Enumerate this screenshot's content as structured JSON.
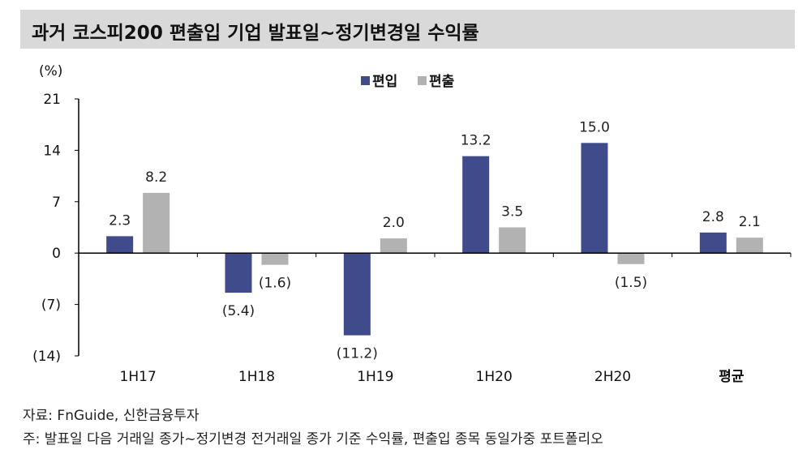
{
  "title": "과거 코스피200 편출입 기업 발표일~정기변경일 수익률",
  "source": "자료: FnGuide, 신한금융투자",
  "note": "주: 발표일 다음 거래일 종가~정기변경 전거래일 종가 기준 수익률, 편출입 종목 동일가중 포트폴리오",
  "chart_data": {
    "type": "bar",
    "ylabel": "(%)",
    "ylim": [
      -14,
      21
    ],
    "yticks": [
      21,
      14,
      7,
      0,
      -7,
      -14
    ],
    "ytick_labels": [
      "21",
      "14",
      "7",
      "0",
      "(7)",
      "(14)"
    ],
    "categories": [
      "1H17",
      "1H18",
      "1H19",
      "1H20",
      "2H20",
      "평균"
    ],
    "legend_position": "top-center",
    "series": [
      {
        "name": "편입",
        "color": "#3f4b8b",
        "values": [
          2.3,
          -5.4,
          -11.2,
          13.2,
          15.0,
          2.8
        ],
        "labels": [
          "2.3",
          "(5.4)",
          "(11.2)",
          "13.2",
          "15.0",
          "2.8"
        ]
      },
      {
        "name": "편출",
        "color": "#b2b2b2",
        "values": [
          8.2,
          -1.6,
          2.0,
          3.5,
          -1.5,
          2.1
        ],
        "labels": [
          "8.2",
          "(1.6)",
          "2.0",
          "3.5",
          "(1.5)",
          "2.1"
        ]
      }
    ]
  }
}
